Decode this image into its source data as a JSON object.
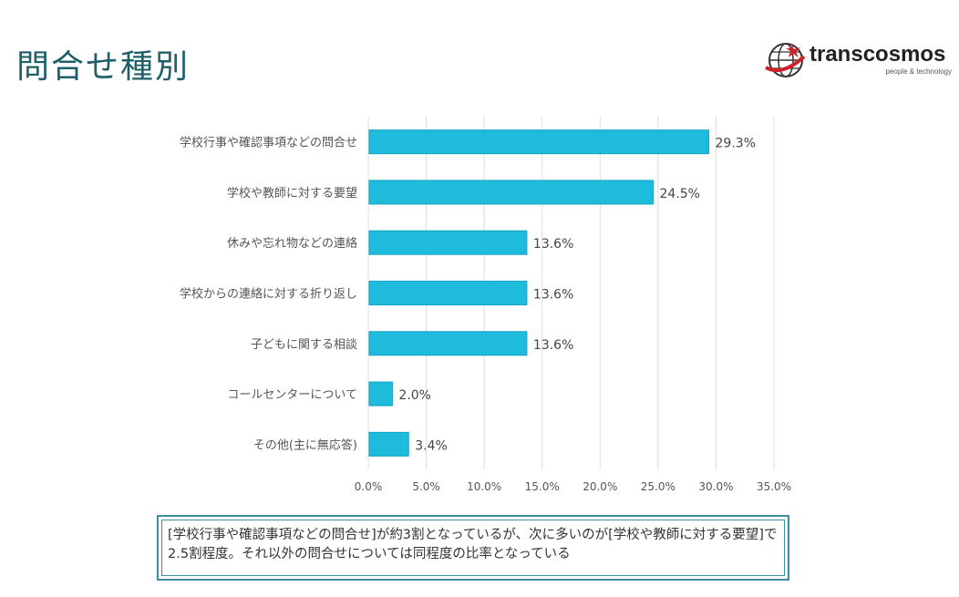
{
  "page": {
    "title": "問合せ種別",
    "logo": {
      "name": "transcosmos",
      "tagline": "people & technology",
      "icon": "globe-logo-icon"
    },
    "note": "[学校行事や確認事項などの問合せ]が約3割となっているが、次に多いのが[学校や教師に対する要望]で2.5割程度。それ以外の問合せについては同程度の比率となっている"
  },
  "colors": {
    "bar": "#1ebbdd",
    "bar_edge": "#16a3c3",
    "title": "#1f5f6a",
    "note_border": "#3b8fa0"
  },
  "chart_data": {
    "type": "bar",
    "orientation": "horizontal",
    "categories": [
      "学校行事や確認事項などの問合せ",
      "学校や教師に対する要望",
      "休みや忘れ物などの連絡",
      "学校からの連絡に対する折り返し",
      "子どもに関する相談",
      "コールセンターについて",
      "その他(主に無応答)"
    ],
    "values": [
      29.3,
      24.5,
      13.6,
      13.6,
      13.6,
      2.0,
      3.4
    ],
    "value_labels": [
      "29.3%",
      "24.5%",
      "13.6%",
      "13.6%",
      "13.6%",
      "2.0%",
      "3.4%"
    ],
    "xlim": [
      0,
      35
    ],
    "xticks": [
      0,
      5,
      10,
      15,
      20,
      25,
      30,
      35
    ],
    "xtick_labels": [
      "0.0%",
      "5.0%",
      "10.0%",
      "15.0%",
      "20.0%",
      "25.0%",
      "30.0%",
      "35.0%"
    ],
    "grid": true,
    "legend": "none"
  }
}
